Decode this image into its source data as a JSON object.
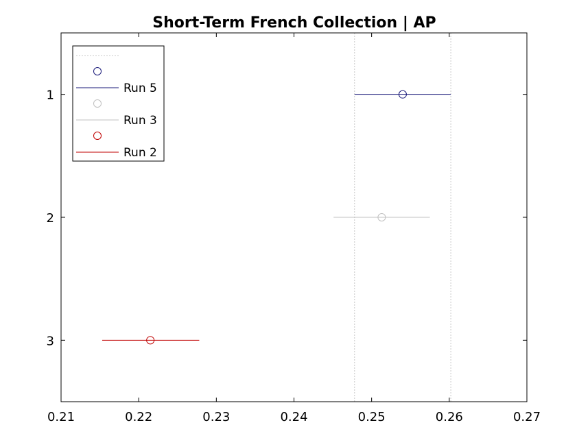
{
  "chart_data": {
    "type": "errorbar",
    "title": "Short-Term French Collection | AP",
    "xlabel": "",
    "ylabel": "",
    "xlim": [
      0.21,
      0.27
    ],
    "ylim": [
      0.5,
      3.5
    ],
    "y_reversed": true,
    "x_ticks": [
      "0.21",
      "0.22",
      "0.23",
      "0.24",
      "0.25",
      "0.26",
      "0.27"
    ],
    "x_tick_values": [
      0.21,
      0.22,
      0.23,
      0.24,
      0.25,
      0.26,
      0.27
    ],
    "y_ticks": [
      "1",
      "2",
      "3"
    ],
    "y_tick_values": [
      1,
      2,
      3
    ],
    "grid": false,
    "legend_position": "top-left",
    "reference_lines": [
      {
        "axis": "x",
        "value": 0.2478,
        "style": "dotted",
        "color": "#c8c8c8"
      },
      {
        "axis": "x",
        "value": 0.2602,
        "style": "dotted",
        "color": "#c8c8c8"
      }
    ],
    "series": [
      {
        "name": "Run 5",
        "y": 1,
        "mean": 0.254,
        "lower": 0.2478,
        "upper": 0.2602,
        "color": "#1a1a7a"
      },
      {
        "name": "Run 3",
        "y": 2,
        "mean": 0.2513,
        "lower": 0.2451,
        "upper": 0.2575,
        "color": "#c0c0c0"
      },
      {
        "name": "Run 2",
        "y": 3,
        "mean": 0.2215,
        "lower": 0.2153,
        "upper": 0.2278,
        "color": "#c00000"
      }
    ]
  }
}
